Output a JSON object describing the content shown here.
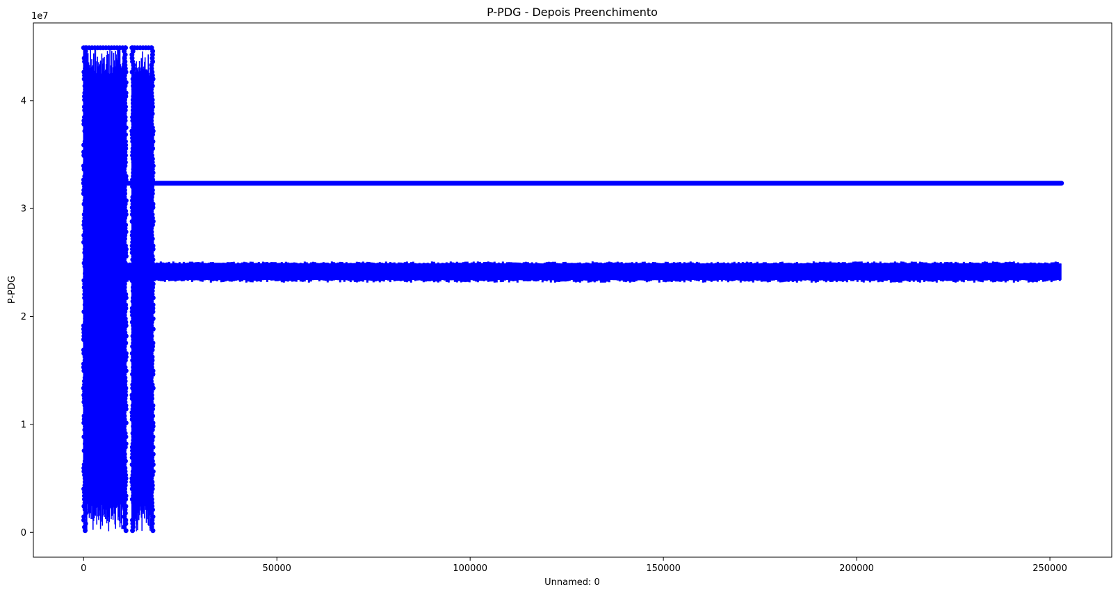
{
  "chart_data": {
    "type": "scatter",
    "title": "P-PDG - Depois Preenchimento",
    "xlabel": "Unnamed: 0",
    "ylabel": "P-PDG",
    "y_offset_text": "1e7",
    "xlim": [
      -13000,
      266000
    ],
    "ylim": [
      -2300000,
      47200000
    ],
    "x_ticks": [
      0,
      50000,
      100000,
      150000,
      200000,
      250000
    ],
    "x_tick_labels": [
      "0",
      "50000",
      "100000",
      "150000",
      "200000",
      "250000"
    ],
    "y_ticks": [
      0,
      10000000,
      20000000,
      30000000,
      40000000
    ],
    "y_tick_labels": [
      "0",
      "1",
      "2",
      "3",
      "4"
    ],
    "grid": false,
    "legend": "none",
    "marker_color": "#0000ff",
    "series": [
      {
        "segments": [
          {
            "x_range": [
              0,
              253000
            ],
            "y_range": [
              32300000,
              32400000
            ],
            "description_kind": "flat line"
          },
          {
            "x_range": [
              0,
              253000
            ],
            "y_range": [
              23200000,
              25100000
            ],
            "description_kind": "dense band"
          },
          {
            "x_range": [
              0,
              11000
            ],
            "y_range": [
              100000,
              44900000
            ],
            "description_kind": "oscillation"
          },
          {
            "x_range": [
              12500,
              18000
            ],
            "y_range": [
              100000,
              44900000
            ],
            "description_kind": "oscillation"
          }
        ]
      }
    ]
  }
}
